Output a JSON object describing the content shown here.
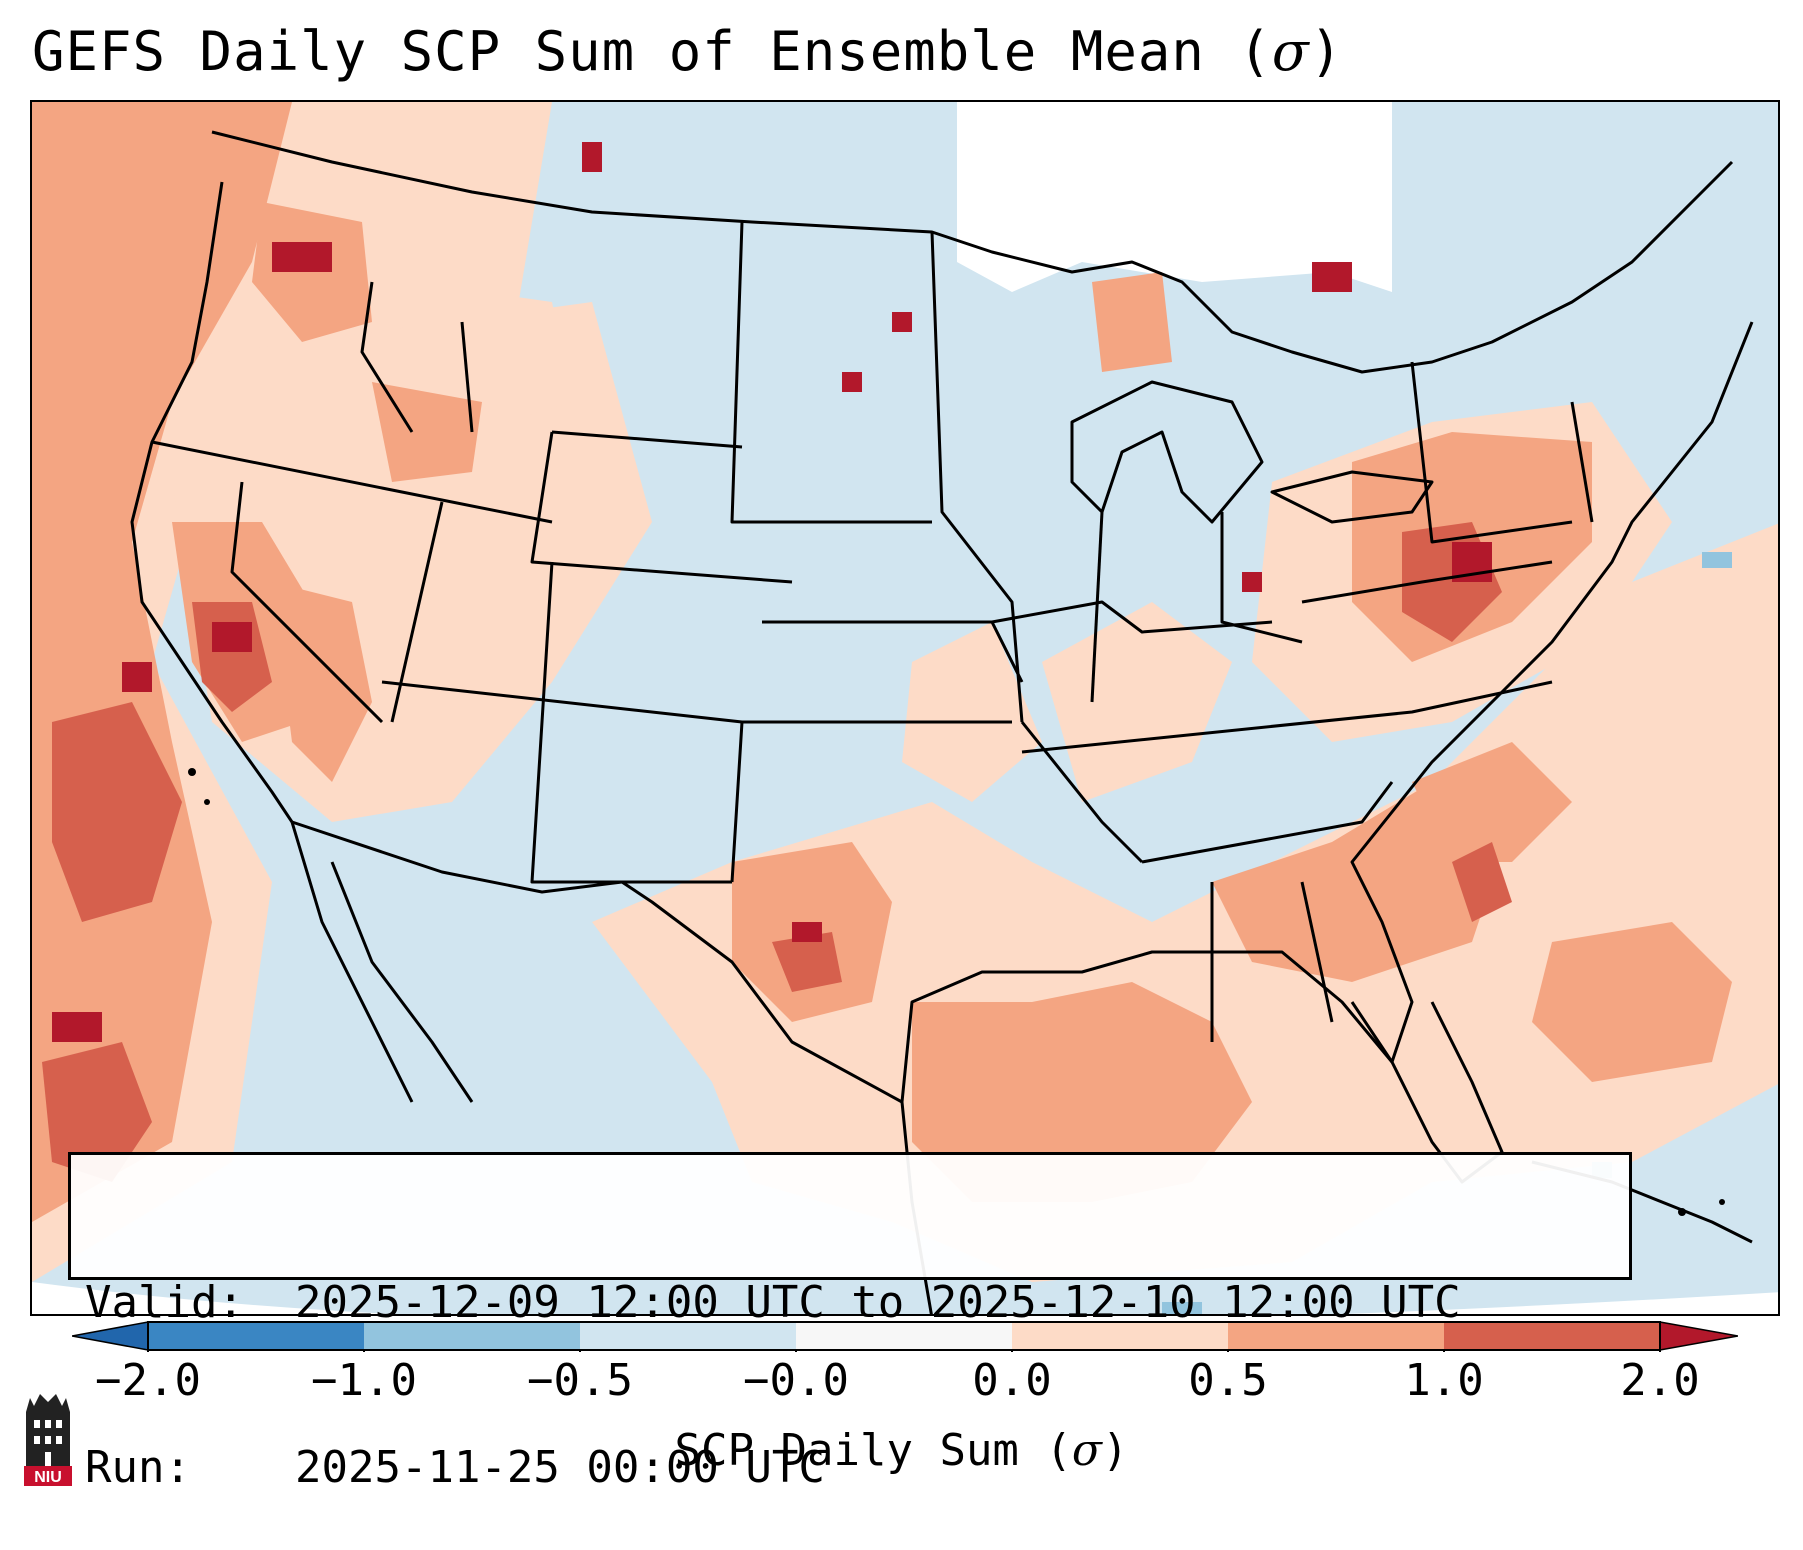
{
  "title": {
    "main": "GEFS Daily SCP Sum of Ensemble Mean (",
    "symbol": "σ",
    "close": ")"
  },
  "info": {
    "valid_label": "Valid:",
    "valid_value": "2025-12-09 12:00 UTC to 2025-12-10 12:00 UTC",
    "run_label": "Run:",
    "run_value": "2025-11-25 00:00 UTC"
  },
  "colorbar": {
    "label_prefix": "SCP Daily Sum (",
    "label_symbol": "σ",
    "label_suffix": ")",
    "ticks": [
      "−2.0",
      "−1.0",
      "−0.5",
      "−0.0",
      "0.0",
      "0.5",
      "1.0",
      "2.0"
    ],
    "colors": [
      "#3a86c3",
      "#92c4de",
      "#d1e5f0",
      "#f7f7f7",
      "#fddbc7",
      "#f4a582",
      "#d6604d",
      "#b2182b"
    ]
  },
  "logo": {
    "text": "NIU"
  },
  "map": {
    "ocean_color": "#d1e5f0",
    "no_data_color": "#ffffff",
    "outline_color": "#000000"
  }
}
